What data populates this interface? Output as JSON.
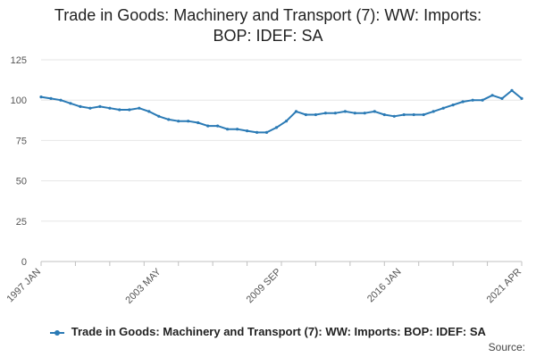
{
  "title_line1": "Trade in Goods: Machinery and Transport (7): WW: Imports:",
  "title_line2": "BOP: IDEF: SA",
  "source_label": "Source:",
  "colors": {
    "series": "#2a7ab5",
    "grid": "#e6e6e6",
    "axis": "#c0c0c0"
  },
  "chart_data": {
    "type": "line",
    "title": "Trade in Goods: Machinery and Transport (7): WW: Imports: BOP: IDEF: SA",
    "xlabel": "",
    "ylabel": "",
    "ylim": [
      0,
      125
    ],
    "yticks": [
      0,
      25,
      50,
      75,
      100,
      125
    ],
    "xticks": [
      "1997 JAN",
      "2003 MAY",
      "2009 SEP",
      "2016 JAN",
      "2021 APR"
    ],
    "grid": true,
    "legend_position": "bottom",
    "series": [
      {
        "name": "Trade in Goods: Machinery and Transport (7): WW: Imports: BOP: IDEF: SA",
        "x": [
          "1997 JAN",
          "1997 JUL",
          "1998 JAN",
          "1998 JUL",
          "1999 JAN",
          "1999 JUL",
          "2000 JAN",
          "2000 JUL",
          "2001 JAN",
          "2001 JUL",
          "2002 JAN",
          "2002 JUL",
          "2003 JAN",
          "2003 JUL",
          "2004 JAN",
          "2004 JUL",
          "2005 JAN",
          "2005 JUL",
          "2006 JAN",
          "2006 JUL",
          "2007 JAN",
          "2007 JUL",
          "2008 JAN",
          "2008 JUL",
          "2009 JAN",
          "2009 JUL",
          "2010 JAN",
          "2010 JUL",
          "2011 JAN",
          "2011 JUL",
          "2012 JAN",
          "2012 JUL",
          "2013 JAN",
          "2013 JUL",
          "2014 JAN",
          "2014 JUL",
          "2015 JAN",
          "2015 JUL",
          "2016 JAN",
          "2016 JUL",
          "2017 JAN",
          "2017 JUL",
          "2018 JAN",
          "2018 JUL",
          "2019 JAN",
          "2019 JUL",
          "2020 JAN",
          "2020 JUL",
          "2021 JAN",
          "2021 APR"
        ],
        "values": [
          102,
          101,
          100,
          98,
          96,
          95,
          96,
          95,
          94,
          94,
          95,
          93,
          90,
          88,
          87,
          87,
          86,
          84,
          84,
          82,
          82,
          81,
          80,
          80,
          83,
          87,
          93,
          91,
          91,
          92,
          92,
          93,
          92,
          92,
          93,
          91,
          90,
          91,
          91,
          91,
          93,
          95,
          97,
          99,
          100,
          100,
          103,
          101,
          106,
          101
        ]
      }
    ]
  }
}
